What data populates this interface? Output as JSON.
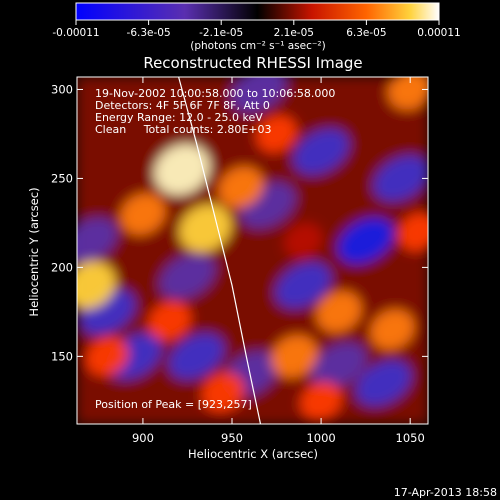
{
  "colorbar": {
    "tick_labels": [
      "-0.00011",
      "-6.3e-05",
      "-2.1e-05",
      "2.1e-05",
      "6.3e-05",
      "0.00011"
    ],
    "units_label": "(photons cm⁻² s⁻¹ asec⁻²)"
  },
  "chart_data": {
    "type": "heatmap",
    "title": "Reconstructed RHESSI Image",
    "xlabel": "Heliocentric X (arcsec)",
    "ylabel": "Heliocentric Y (arcsec)",
    "xlim": [
      863,
      1060
    ],
    "ylim": [
      112,
      307
    ],
    "xticks": [
      900,
      950,
      1000,
      1050
    ],
    "yticks": [
      150,
      200,
      250,
      300
    ],
    "colormap": "blue-purple-black-red-orange-yellow-white (diverging)",
    "value_range": [
      -0.00011,
      0.00011
    ],
    "annotation_lines": [
      "19-Nov-2002 10:00:58.000 to 10:06:58.000",
      "Detectors: 4F 5F 6F 7F 8F, Att 0",
      "Energy Range: 12.0 - 25.0 keV",
      "Clean     Total counts: 2.80E+03"
    ],
    "peak_label": "Position of Peak = [923,257]",
    "peak": [
      923,
      257
    ],
    "limb_points": [
      [
        920,
        307
      ],
      [
        930,
        270
      ],
      [
        940,
        230
      ],
      [
        950,
        190
      ],
      [
        958,
        150
      ],
      [
        966,
        112
      ]
    ],
    "bright_regions": [
      {
        "x": 922,
        "y": 255,
        "level": 1.0
      },
      {
        "x": 870,
        "y": 190,
        "level": 0.85
      },
      {
        "x": 935,
        "y": 222,
        "level": 0.85
      },
      {
        "x": 900,
        "y": 230,
        "level": 0.55
      },
      {
        "x": 955,
        "y": 245,
        "level": 0.55
      },
      {
        "x": 915,
        "y": 170,
        "level": 0.45
      },
      {
        "x": 1010,
        "y": 175,
        "level": 0.55
      },
      {
        "x": 985,
        "y": 150,
        "level": 0.6
      },
      {
        "x": 1040,
        "y": 165,
        "level": 0.5
      },
      {
        "x": 1050,
        "y": 300,
        "level": 0.5
      },
      {
        "x": 1055,
        "y": 220,
        "level": 0.4
      },
      {
        "x": 975,
        "y": 275,
        "level": 0.35
      },
      {
        "x": 1000,
        "y": 125,
        "level": 0.4
      },
      {
        "x": 880,
        "y": 150,
        "level": 0.45
      },
      {
        "x": 945,
        "y": 130,
        "level": 0.45
      },
      {
        "x": 990,
        "y": 215,
        "level": 0.25
      }
    ],
    "dark_regions": [
      {
        "x": 1025,
        "y": 215,
        "level": -0.95
      },
      {
        "x": 1045,
        "y": 250,
        "level": -0.75
      },
      {
        "x": 990,
        "y": 190,
        "level": -0.6
      },
      {
        "x": 970,
        "y": 235,
        "level": -0.45
      },
      {
        "x": 1000,
        "y": 265,
        "level": -0.55
      },
      {
        "x": 880,
        "y": 175,
        "level": -0.7
      },
      {
        "x": 895,
        "y": 150,
        "level": -0.55
      },
      {
        "x": 930,
        "y": 150,
        "level": -0.6
      },
      {
        "x": 960,
        "y": 140,
        "level": -0.5
      },
      {
        "x": 1035,
        "y": 135,
        "level": -0.55
      },
      {
        "x": 1010,
        "y": 145,
        "level": -0.35
      },
      {
        "x": 925,
        "y": 195,
        "level": -0.35
      },
      {
        "x": 965,
        "y": 300,
        "level": -0.4
      },
      {
        "x": 870,
        "y": 215,
        "level": -0.4
      }
    ]
  },
  "footer": {
    "timestamp": "17-Apr-2013 18:58"
  }
}
